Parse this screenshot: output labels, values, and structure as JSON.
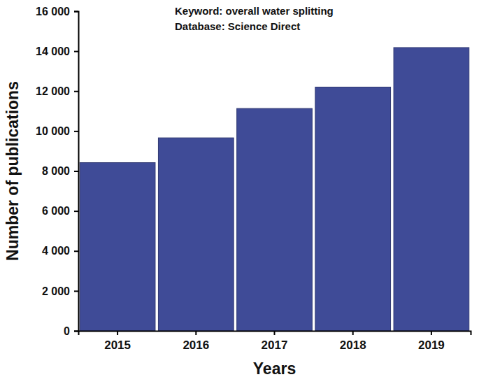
{
  "chart_data": {
    "type": "bar",
    "annotations": [
      "Keyword: overall water splitting",
      "Database: Science Direct"
    ],
    "x_label": "Years",
    "y_label": "Number of publications",
    "categories": [
      "2015",
      "2016",
      "2017",
      "2018",
      "2019"
    ],
    "values": [
      8420,
      9660,
      11130,
      12200,
      14180
    ],
    "color": "#3f4b97",
    "ylim": [
      0,
      16000
    ],
    "yticks": [
      0,
      {
        "value": 2000,
        "label": "2 000"
      },
      {
        "value": 4000,
        "label": "4 000"
      },
      {
        "value": 6000,
        "label": "6 000"
      },
      {
        "value": 8000,
        "label": "8 000"
      },
      {
        "value": 10000,
        "label": "10 000"
      },
      {
        "value": 12000,
        "label": "12 000"
      },
      {
        "value": 14000,
        "label": "14 000"
      },
      {
        "value": 16000,
        "label": "16 000"
      }
    ],
    "grid": false
  }
}
